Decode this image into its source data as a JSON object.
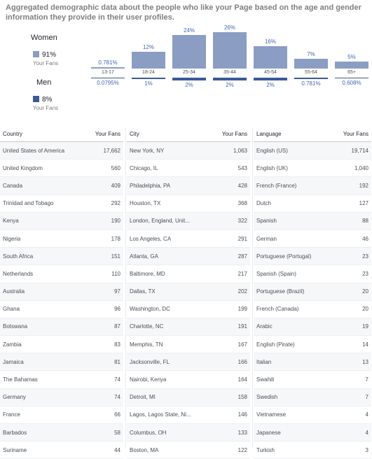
{
  "header": {
    "description": "Aggregated demographic data about the people who like your Page based on the age and gender information they provide in their user profiles."
  },
  "legend": {
    "women_label": "Women",
    "women_pct": "91%",
    "women_sub": "Your Fans",
    "men_label": "Men",
    "men_pct": "8%",
    "men_sub": "Your Fans"
  },
  "colors": {
    "women_bar": "#8b9dc3",
    "men_bar": "#3b5998",
    "label_blue": "#4267b2"
  },
  "chart_data": {
    "type": "bar",
    "categories": [
      "13-17",
      "18-24",
      "25-34",
      "35-44",
      "45-54",
      "55-64",
      "65+"
    ],
    "series": [
      {
        "name": "Women",
        "labels": [
          "0.781%",
          "12%",
          "24%",
          "26%",
          "16%",
          "7%",
          "5%"
        ],
        "values": [
          0.781,
          12,
          24,
          26,
          16,
          7,
          5
        ]
      },
      {
        "name": "Men",
        "labels": [
          "0.0795%",
          "1%",
          "2%",
          "2%",
          "2%",
          "0.781%",
          "0.608%"
        ],
        "values": [
          0.0795,
          1,
          2,
          2,
          2,
          0.781,
          0.608
        ]
      }
    ]
  },
  "tables": {
    "country": {
      "header": "Country",
      "count_header": "Your Fans",
      "rows": [
        {
          "name": "United States of America",
          "value": "17,662"
        },
        {
          "name": "United Kingdom",
          "value": "560"
        },
        {
          "name": "Canada",
          "value": "409"
        },
        {
          "name": "Trinidad and Tobago",
          "value": "292"
        },
        {
          "name": "Kenya",
          "value": "190"
        },
        {
          "name": "Nigeria",
          "value": "178"
        },
        {
          "name": "South Africa",
          "value": "151"
        },
        {
          "name": "Netherlands",
          "value": "110"
        },
        {
          "name": "Australia",
          "value": "97"
        },
        {
          "name": "Ghana",
          "value": "96"
        },
        {
          "name": "Botswana",
          "value": "87"
        },
        {
          "name": "Zambia",
          "value": "83"
        },
        {
          "name": "Jamaica",
          "value": "81"
        },
        {
          "name": "The Bahamas",
          "value": "74"
        },
        {
          "name": "Germany",
          "value": "74"
        },
        {
          "name": "France",
          "value": "66"
        },
        {
          "name": "Barbados",
          "value": "58"
        },
        {
          "name": "Suriname",
          "value": "44"
        }
      ]
    },
    "city": {
      "header": "City",
      "count_header": "Your Fans",
      "rows": [
        {
          "name": "New York, NY",
          "value": "1,063"
        },
        {
          "name": "Chicago, IL",
          "value": "543"
        },
        {
          "name": "Philadelphia, PA",
          "value": "428"
        },
        {
          "name": "Houston, TX",
          "value": "368"
        },
        {
          "name": "London, England, Unit...",
          "value": "322"
        },
        {
          "name": "Los Angeles, CA",
          "value": "291"
        },
        {
          "name": "Atlanta, GA",
          "value": "287"
        },
        {
          "name": "Baltimore, MD",
          "value": "217"
        },
        {
          "name": "Dallas, TX",
          "value": "202"
        },
        {
          "name": "Washington, DC",
          "value": "199"
        },
        {
          "name": "Charlotte, NC",
          "value": "191"
        },
        {
          "name": "Memphis, TN",
          "value": "167"
        },
        {
          "name": "Jacksonville, FL",
          "value": "166"
        },
        {
          "name": "Nairobi, Kenya",
          "value": "164"
        },
        {
          "name": "Detroit, MI",
          "value": "158"
        },
        {
          "name": "Lagos, Lagos State, Ni...",
          "value": "146"
        },
        {
          "name": "Columbus, OH",
          "value": "133"
        },
        {
          "name": "Boston, MA",
          "value": "122"
        }
      ]
    },
    "language": {
      "header": "Language",
      "count_header": "Your Fans",
      "rows": [
        {
          "name": "English (US)",
          "value": "19,714"
        },
        {
          "name": "English (UK)",
          "value": "1,040"
        },
        {
          "name": "French (France)",
          "value": "192"
        },
        {
          "name": "Dutch",
          "value": "127"
        },
        {
          "name": "Spanish",
          "value": "88"
        },
        {
          "name": "German",
          "value": "46"
        },
        {
          "name": "Portuguese (Portugal)",
          "value": "23"
        },
        {
          "name": "Spanish (Spain)",
          "value": "23"
        },
        {
          "name": "Portuguese (Brazil)",
          "value": "20"
        },
        {
          "name": "French (Canada)",
          "value": "20"
        },
        {
          "name": "Arabic",
          "value": "19"
        },
        {
          "name": "English (Pirate)",
          "value": "14"
        },
        {
          "name": "Italian",
          "value": "13"
        },
        {
          "name": "Swahili",
          "value": "7"
        },
        {
          "name": "Swedish",
          "value": "7"
        },
        {
          "name": "Vietnamese",
          "value": "4"
        },
        {
          "name": "Japanese",
          "value": "4"
        },
        {
          "name": "Turkish",
          "value": "3"
        }
      ]
    }
  }
}
